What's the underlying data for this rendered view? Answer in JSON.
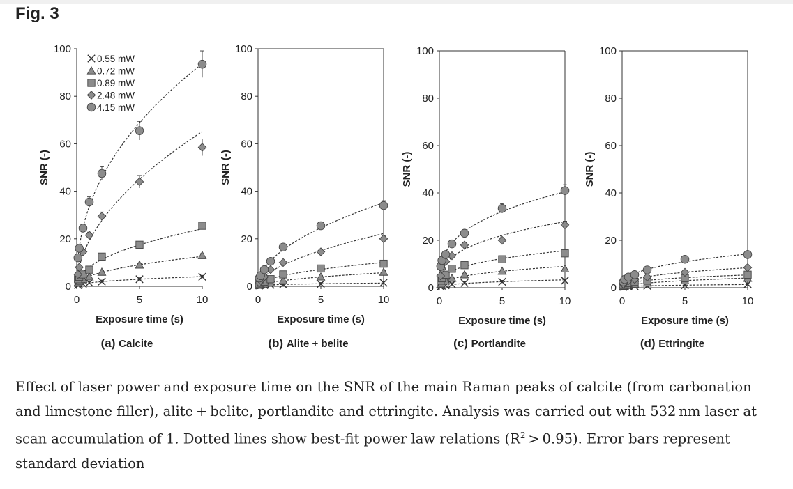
{
  "figure": {
    "title": "Fig. 3"
  },
  "caption": {
    "part1": "Effect of laser power and exposure time on the SNR of the main Raman peaks of calcite (from carbonation and limestone filler), alite + belite, portlandite and ettringite. Analysis was carried out with 532 nm laser at scan accumulation of 1. Dotted lines show best-fit power law relations (R",
    "sup": "2",
    "part2": " > 0.95). Error bars represent standard deviation"
  },
  "legend": [
    {
      "label": "0.55 mW",
      "marker": "cross"
    },
    {
      "label": "0.72 mW",
      "marker": "triangle"
    },
    {
      "label": "0.89 mW",
      "marker": "square"
    },
    {
      "label": "2.48 mW",
      "marker": "diamond"
    },
    {
      "label": "4.15 mW",
      "marker": "circle"
    }
  ],
  "chart_data": [
    {
      "type": "scatter",
      "panel": "(a)",
      "title": "Calcite",
      "xlabel": "Exposure time (s)",
      "ylabel": "SNR (-)",
      "xlim": [
        0,
        10
      ],
      "ylim": [
        0,
        100
      ],
      "xticks": [
        "0",
        "5",
        "10"
      ],
      "yticks": [
        "0",
        "20",
        "40",
        "60",
        "80",
        "100"
      ],
      "x": [
        0.1,
        0.2,
        0.5,
        1,
        2,
        5,
        10
      ],
      "legend_position": "top-left",
      "series": [
        {
          "name": "0.55 mW",
          "values": [
            0.5,
            0.7,
            1.0,
            1.5,
            2,
            3,
            4
          ]
        },
        {
          "name": "0.72 mW",
          "values": [
            1.5,
            2,
            3,
            4,
            6,
            9,
            13
          ]
        },
        {
          "name": "0.89 mW",
          "values": [
            3,
            4,
            5,
            7,
            12.5,
            17.5,
            25.5
          ]
        },
        {
          "name": "2.48 mW",
          "values": [
            5,
            8,
            14.5,
            21.5,
            29.5,
            44,
            58.5
          ]
        },
        {
          "name": "4.15 mW",
          "values": [
            12,
            16,
            24.5,
            35.5,
            47.5,
            65.5,
            93.5
          ]
        }
      ]
    },
    {
      "type": "scatter",
      "panel": "(b)",
      "title": "Alite + belite",
      "xlabel": "Exposure time (s)",
      "ylabel": "SNR (-)",
      "xlim": [
        0,
        10
      ],
      "ylim": [
        0,
        100
      ],
      "xticks": [
        "0",
        "5",
        "10"
      ],
      "yticks": [
        "0",
        "20",
        "40",
        "60",
        "80",
        "100"
      ],
      "x": [
        0.1,
        0.2,
        0.5,
        1,
        2,
        5,
        10
      ],
      "series": [
        {
          "name": "0.55 mW",
          "values": [
            0.3,
            0.4,
            0.5,
            0.6,
            0.8,
            1.0,
            1.5
          ]
        },
        {
          "name": "0.72 mW",
          "values": [
            0.5,
            0.8,
            1,
            1.5,
            2.5,
            4,
            6
          ]
        },
        {
          "name": "0.89 mW",
          "values": [
            1,
            1.5,
            2,
            3,
            5,
            7.5,
            9.5
          ]
        },
        {
          "name": "2.48 mW",
          "values": [
            1.5,
            2.5,
            4,
            7,
            10,
            14.5,
            20
          ]
        },
        {
          "name": "4.15 mW",
          "values": [
            3.5,
            4.5,
            7,
            10.5,
            16.5,
            25.5,
            34
          ]
        }
      ]
    },
    {
      "type": "scatter",
      "panel": "(c)",
      "title": "Portlandite",
      "xlabel": "Exposure time (s)",
      "ylabel": "SNR (-)",
      "xlim": [
        0,
        10
      ],
      "ylim": [
        0,
        100
      ],
      "xticks": [
        "0",
        "5",
        "10"
      ],
      "yticks": [
        "0",
        "20",
        "40",
        "60",
        "80",
        "100"
      ],
      "x": [
        0.1,
        0.2,
        0.5,
        1,
        2,
        5,
        10
      ],
      "series": [
        {
          "name": "0.55 mW",
          "values": [
            0.5,
            0.8,
            1.0,
            1.5,
            2,
            2.5,
            3
          ]
        },
        {
          "name": "0.72 mW",
          "values": [
            1.5,
            2,
            3,
            4,
            5.5,
            7,
            8
          ]
        },
        {
          "name": "0.89 mW",
          "values": [
            3,
            4,
            5.5,
            8,
            9.5,
            12,
            14.5
          ]
        },
        {
          "name": "2.48 mW",
          "values": [
            5,
            8,
            11,
            13.5,
            18,
            20,
            26.5
          ]
        },
        {
          "name": "4.15 mW",
          "values": [
            9,
            11.5,
            14,
            18.5,
            23,
            33.5,
            41
          ]
        }
      ]
    },
    {
      "type": "scatter",
      "panel": "(d)",
      "title": "Ettringite",
      "xlabel": "Exposure time (s)",
      "ylabel": "SNR (-)",
      "xlim": [
        0,
        10
      ],
      "ylim": [
        0,
        100
      ],
      "xticks": [
        "0",
        "5",
        "10"
      ],
      "yticks": [
        "0",
        "20",
        "40",
        "60",
        "80",
        "100"
      ],
      "x": [
        0.1,
        0.2,
        0.5,
        1,
        2,
        5,
        10
      ],
      "series": [
        {
          "name": "0.55 mW",
          "values": [
            0.3,
            0.4,
            0.5,
            0.6,
            0.8,
            1.0,
            1.5
          ]
        },
        {
          "name": "0.72 mW",
          "values": [
            0.5,
            0.7,
            1,
            1.5,
            2,
            3,
            4
          ]
        },
        {
          "name": "0.89 mW",
          "values": [
            1,
            1.5,
            2,
            2.5,
            3,
            4,
            5.5
          ]
        },
        {
          "name": "2.48 mW",
          "values": [
            1.5,
            2,
            3,
            3.5,
            4.5,
            6.5,
            8.5
          ]
        },
        {
          "name": "4.15 mW",
          "values": [
            2.5,
            3.5,
            4.5,
            5.5,
            7.5,
            12,
            14
          ]
        }
      ]
    }
  ]
}
